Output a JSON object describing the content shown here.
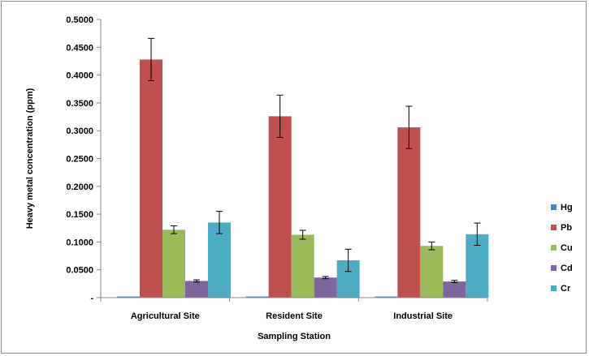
{
  "chart_data": {
    "type": "bar",
    "title": "",
    "xlabel": "Sampling Station",
    "ylabel": "Heavy metal concentration (ppm)",
    "categories": [
      "Agricultural Site",
      "Resident Site",
      "Industrial Site"
    ],
    "ylim": [
      0,
      0.5
    ],
    "yticks": [
      "-",
      "0.0500",
      "0.1000",
      "0.1500",
      "0.2000",
      "0.2500",
      "0.3000",
      "0.3500",
      "0.4000",
      "0.4500",
      "0.5000"
    ],
    "grid": false,
    "legend_position": "right",
    "error_bars": true,
    "series": [
      {
        "name": "Hg",
        "color": "#4f81bd",
        "values": [
          0.002,
          0.002,
          0.002
        ],
        "errors": [
          0.0,
          0.0,
          0.0
        ]
      },
      {
        "name": "Pb",
        "color": "#c0504d",
        "values": [
          0.428,
          0.326,
          0.306
        ],
        "errors": [
          0.038,
          0.038,
          0.038
        ]
      },
      {
        "name": "Cu",
        "color": "#9bbb59",
        "values": [
          0.122,
          0.113,
          0.093
        ],
        "errors": [
          0.007,
          0.008,
          0.007
        ]
      },
      {
        "name": "Cd",
        "color": "#8064a2",
        "values": [
          0.03,
          0.036,
          0.029
        ],
        "errors": [
          0.002,
          0.002,
          0.002
        ]
      },
      {
        "name": "Cr",
        "color": "#4bacc6",
        "values": [
          0.135,
          0.067,
          0.114
        ],
        "errors": [
          0.02,
          0.02,
          0.02
        ]
      }
    ]
  }
}
